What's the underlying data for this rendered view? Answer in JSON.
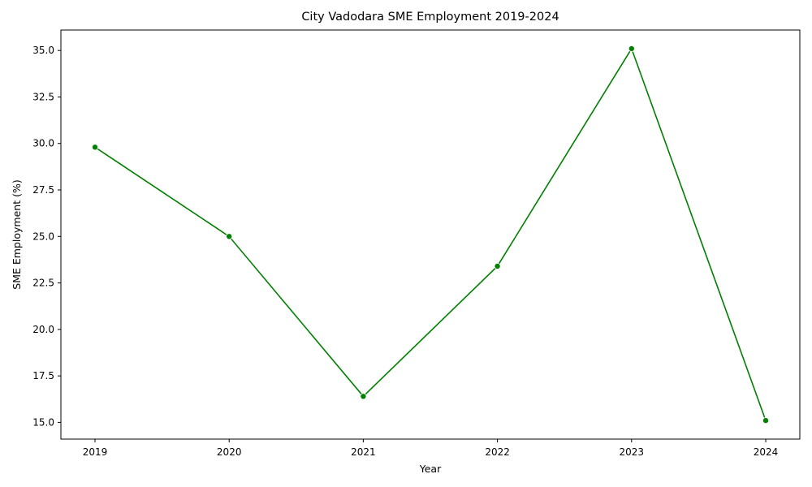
{
  "chart_data": {
    "type": "line",
    "title": "City Vadodara SME Employment 2019-2024",
    "xlabel": "Year",
    "ylabel": "SME Employment (%)",
    "x": [
      "2019",
      "2020",
      "2021",
      "2022",
      "2023",
      "2024"
    ],
    "series": [
      {
        "name": "SME Employment",
        "values": [
          29.8,
          25.0,
          16.4,
          23.4,
          35.1,
          15.1
        ]
      }
    ],
    "yticks": [
      "15.0",
      "17.5",
      "20.0",
      "22.5",
      "25.0",
      "27.5",
      "30.0",
      "32.5",
      "35.0"
    ],
    "ylim": [
      14.1,
      36.1
    ],
    "grid": false,
    "colors": {
      "line": "#008000",
      "axis": "#000000"
    }
  }
}
